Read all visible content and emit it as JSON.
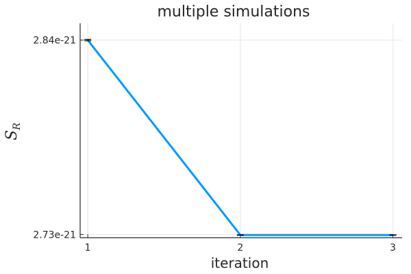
{
  "chart_data": {
    "type": "line",
    "title": "multiple simulations",
    "xlabel": "iteration",
    "ylabel": "S",
    "ylabel_subscript": "R",
    "x": [
      1,
      2,
      3
    ],
    "x_ticks": [
      1,
      2,
      3
    ],
    "x_tick_labels": [
      "1",
      "2",
      "3"
    ],
    "xlim": [
      0.95,
      3.06
    ],
    "y_ticks": [
      2.84e-21,
      2.73e-21
    ],
    "y_tick_labels": [
      "2.84e-21",
      "2.73e-21"
    ],
    "ylim": [
      2.7282e-21,
      2.8495e-21
    ],
    "grid": true,
    "legend": "none",
    "series": [
      {
        "values": [
          2.84e-21,
          2.7297e-21,
          2.7297e-21
        ],
        "errors": [
          4e-25,
          1e-25,
          1e-25
        ],
        "color": "#009af9"
      }
    ]
  }
}
